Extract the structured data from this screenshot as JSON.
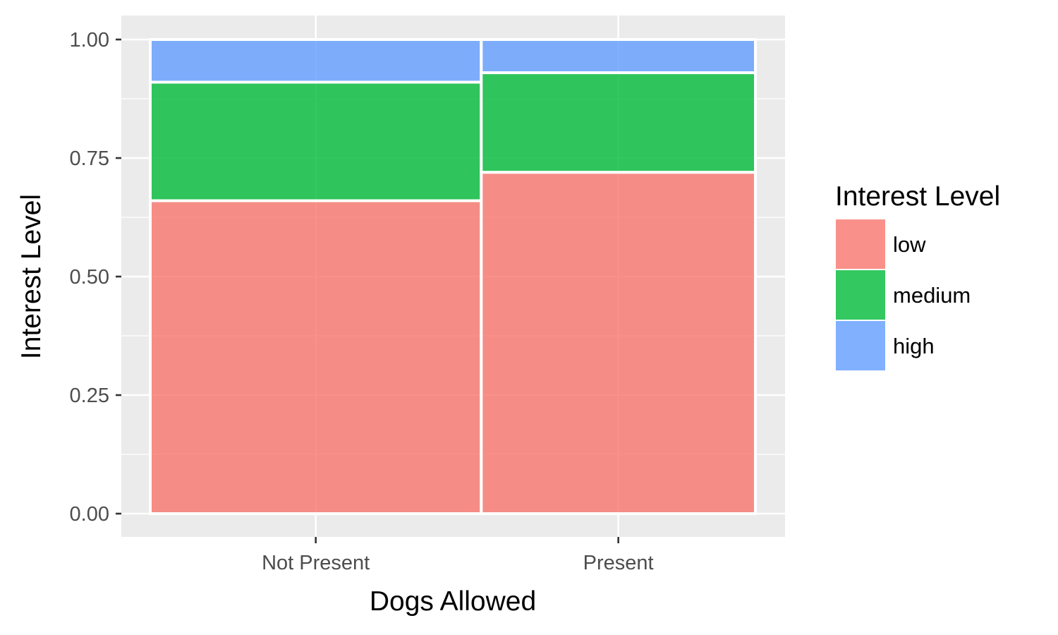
{
  "chart_data": {
    "type": "bar",
    "stacked": true,
    "mosaic": true,
    "xlabel": "Dogs Allowed",
    "ylabel": "Interest Level",
    "ylim": [
      0,
      1
    ],
    "yticks": [
      0,
      0.25,
      0.5,
      0.75,
      1
    ],
    "ytick_labels": [
      "0.00",
      "0.25",
      "0.50",
      "0.75",
      "1.00"
    ],
    "categories": [
      "Not Present",
      "Present"
    ],
    "category_widths": [
      0.547,
      0.453
    ],
    "series": [
      {
        "name": "low",
        "color": "#F8766D",
        "values": [
          0.66,
          0.72
        ]
      },
      {
        "name": "medium",
        "color": "#00BA38",
        "values": [
          0.25,
          0.21
        ]
      },
      {
        "name": "high",
        "color": "#619CFF",
        "values": [
          0.09,
          0.07
        ]
      }
    ],
    "legend": {
      "title": "Interest Level",
      "position": "right"
    },
    "grid": true,
    "background": "#EBEBEB"
  }
}
